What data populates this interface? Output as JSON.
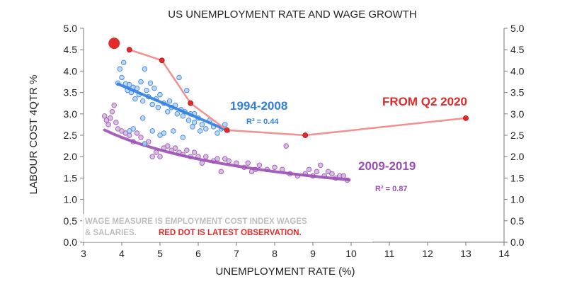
{
  "chart_data": {
    "type": "scatter",
    "title": "US UNEMPLOYMENT RATE AND WAGE GROWTH",
    "xlabel": "UNEMPLOYMENT RATE (%)",
    "ylabel": "LABOUR COST 4QTR %",
    "xlim": [
      3,
      14
    ],
    "ylim": [
      0,
      5
    ],
    "x_ticks": [
      "3",
      "4",
      "5",
      "6",
      "7",
      "8",
      "9",
      "10",
      "11",
      "12",
      "13",
      "14"
    ],
    "y_ticks": [
      "0.0",
      "0.5",
      "1.0",
      "1.5",
      "2.0",
      "2.5",
      "3.0",
      "3.5",
      "4.0",
      "4.5",
      "5.0"
    ],
    "grid": false,
    "colors": {
      "blue": "#2f7fe0",
      "blue_fill": "#a9c9f2",
      "purple": "#9b4fb4",
      "purple_fill": "#c9a8d8",
      "red": "#e32a2a",
      "red_line": "#f29090",
      "note_gray": "#bdbdbd"
    },
    "series": [
      {
        "name": "1994-2008",
        "r2_label": "R² = 0.44",
        "color": "#2f7fe0",
        "points": [
          [
            3.9,
            3.72
          ],
          [
            3.95,
            4.05
          ],
          [
            4.0,
            3.85
          ],
          [
            4.05,
            4.2
          ],
          [
            4.1,
            3.7
          ],
          [
            4.15,
            3.55
          ],
          [
            4.2,
            3.68
          ],
          [
            4.25,
            3.5
          ],
          [
            4.3,
            3.62
          ],
          [
            4.35,
            3.35
          ],
          [
            4.4,
            3.6
          ],
          [
            4.45,
            3.45
          ],
          [
            4.5,
            3.75
          ],
          [
            4.55,
            3.3
          ],
          [
            4.6,
            4.05
          ],
          [
            4.65,
            3.55
          ],
          [
            4.7,
            3.4
          ],
          [
            4.75,
            3.72
          ],
          [
            4.8,
            3.22
          ],
          [
            4.85,
            3.6
          ],
          [
            4.9,
            3.35
          ],
          [
            4.95,
            3.15
          ],
          [
            5.0,
            3.45
          ],
          [
            5.1,
            3.25
          ],
          [
            5.2,
            3.05
          ],
          [
            5.25,
            3.3
          ],
          [
            5.3,
            3.15
          ],
          [
            5.4,
            3.2
          ],
          [
            5.45,
            3.0
          ],
          [
            5.5,
            3.85
          ],
          [
            5.55,
            3.1
          ],
          [
            5.6,
            2.95
          ],
          [
            5.65,
            3.05
          ],
          [
            5.7,
            3.55
          ],
          [
            5.75,
            2.85
          ],
          [
            5.8,
            3.0
          ],
          [
            5.85,
            2.7
          ],
          [
            5.9,
            2.8
          ],
          [
            6.0,
            2.9
          ],
          [
            6.05,
            2.6
          ],
          [
            6.1,
            2.75
          ],
          [
            6.2,
            2.65
          ],
          [
            6.3,
            2.85
          ],
          [
            6.4,
            2.7
          ],
          [
            6.5,
            2.55
          ],
          [
            6.6,
            2.65
          ],
          [
            6.7,
            2.75
          ],
          [
            4.8,
            2.6
          ],
          [
            5.1,
            2.55
          ],
          [
            5.35,
            2.6
          ],
          [
            4.6,
            2.3
          ],
          [
            5.0,
            2.5
          ],
          [
            4.3,
            2.65
          ],
          [
            4.55,
            2.9
          ],
          [
            5.6,
            2.45
          ],
          [
            5.9,
            3.0
          ],
          [
            4.2,
            2.6
          ]
        ],
        "fit": {
          "type": "linear",
          "x": [
            3.9,
            6.8
          ],
          "y": [
            3.7,
            2.6
          ]
        }
      },
      {
        "name": "2009-2019",
        "r2_label": "R² = 0.87",
        "color": "#9b4fb4",
        "points": [
          [
            3.55,
            2.95
          ],
          [
            3.6,
            2.85
          ],
          [
            3.65,
            2.75
          ],
          [
            3.7,
            2.9
          ],
          [
            3.75,
            3.05
          ],
          [
            3.8,
            3.2
          ],
          [
            3.85,
            2.8
          ],
          [
            3.9,
            2.65
          ],
          [
            4.0,
            2.6
          ],
          [
            4.1,
            2.55
          ],
          [
            4.2,
            2.5
          ],
          [
            4.3,
            2.35
          ],
          [
            4.4,
            2.55
          ],
          [
            4.5,
            2.45
          ],
          [
            4.6,
            2.3
          ],
          [
            4.7,
            2.35
          ],
          [
            4.8,
            2.0
          ],
          [
            4.9,
            2.1
          ],
          [
            5.0,
            2.0
          ],
          [
            5.1,
            2.2
          ],
          [
            5.2,
            2.25
          ],
          [
            5.3,
            2.15
          ],
          [
            5.4,
            2.2
          ],
          [
            5.5,
            2.1
          ],
          [
            5.6,
            2.05
          ],
          [
            5.7,
            2.15
          ],
          [
            5.8,
            2.0
          ],
          [
            5.9,
            2.1
          ],
          [
            6.0,
            2.0
          ],
          [
            6.1,
            1.85
          ],
          [
            6.2,
            2.0
          ],
          [
            6.4,
            1.9
          ],
          [
            6.5,
            1.95
          ],
          [
            6.6,
            1.65
          ],
          [
            6.7,
            1.95
          ],
          [
            6.8,
            1.9
          ],
          [
            7.0,
            1.85
          ],
          [
            7.2,
            1.75
          ],
          [
            7.3,
            1.85
          ],
          [
            7.5,
            1.7
          ],
          [
            7.6,
            1.8
          ],
          [
            7.8,
            1.7
          ],
          [
            8.0,
            1.75
          ],
          [
            8.2,
            1.7
          ],
          [
            8.3,
            2.25
          ],
          [
            8.4,
            1.6
          ],
          [
            8.6,
            1.55
          ],
          [
            8.8,
            1.6
          ],
          [
            9.0,
            1.55
          ],
          [
            9.1,
            1.65
          ],
          [
            9.2,
            1.8
          ],
          [
            9.3,
            1.55
          ],
          [
            9.4,
            1.65
          ],
          [
            9.5,
            1.6
          ],
          [
            9.6,
            1.5
          ],
          [
            9.7,
            1.55
          ],
          [
            9.8,
            1.55
          ],
          [
            9.9,
            1.45
          ],
          [
            7.4,
            1.65
          ],
          [
            8.9,
            1.7
          ]
        ],
        "fit": {
          "type": "power",
          "x0": 3.55,
          "x1": 9.95,
          "a": 5.4,
          "b": -0.57
        }
      }
    ],
    "recent_path": {
      "points": [
        [
          4.2,
          4.5
        ],
        [
          5.05,
          4.25
        ],
        [
          5.8,
          3.25
        ],
        [
          6.75,
          2.62
        ],
        [
          8.8,
          2.5
        ],
        [
          13.0,
          2.9
        ]
      ],
      "latest": [
        3.8,
        4.65
      ],
      "label": "FROM Q2 2020",
      "color": "#e32a2a"
    },
    "notes": {
      "line1": "WAGE MEASURE IS EMPLOYMENT COST INDEX WAGES",
      "line2_gray": "& SALARIES.",
      "line2_red": "RED DOT IS LATEST  OBSERVATION."
    }
  }
}
